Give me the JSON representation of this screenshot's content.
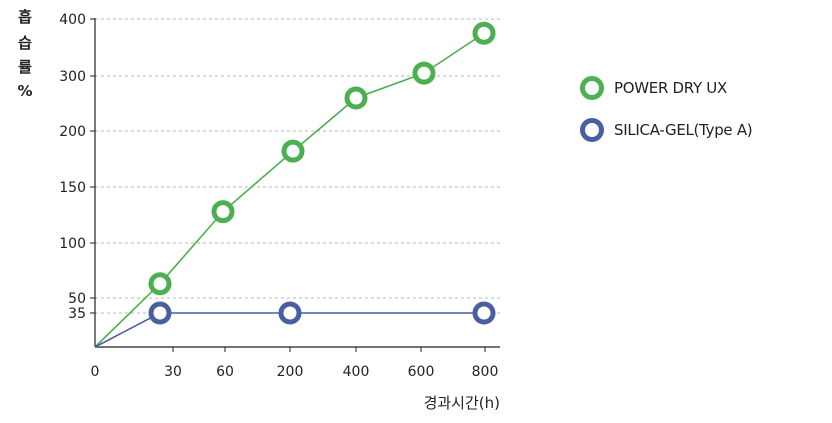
{
  "chart_data": {
    "type": "line",
    "ylabel_chars": [
      "흡",
      "습",
      "률",
      "%"
    ],
    "xlabel": "경과시간(h)",
    "x_ticks": [
      "0",
      "30",
      "60",
      "200",
      "400",
      "600",
      "800"
    ],
    "y_ticks": [
      "400",
      "300",
      "200",
      "150",
      "100",
      "50",
      "35"
    ],
    "grid": "horizontal dashed",
    "legend_position": "right",
    "series": [
      {
        "name": "POWER DRY UX",
        "color": "#4caf50",
        "points": [
          {
            "x": "0",
            "y": 0
          },
          {
            "x": "30",
            "y": 63
          },
          {
            "x": "60",
            "y": 128
          },
          {
            "x": "200",
            "y": 182
          },
          {
            "x": "400",
            "y": 260
          },
          {
            "x": "600",
            "y": 305
          },
          {
            "x": "800",
            "y": 375
          }
        ]
      },
      {
        "name": "SILICA-GEL(Type A)",
        "color": "#4a5fa0",
        "points": [
          {
            "x": "0",
            "y": 0
          },
          {
            "x": "30",
            "y": 35
          },
          {
            "x": "200",
            "y": 35
          },
          {
            "x": "800",
            "y": 35
          }
        ]
      }
    ]
  }
}
